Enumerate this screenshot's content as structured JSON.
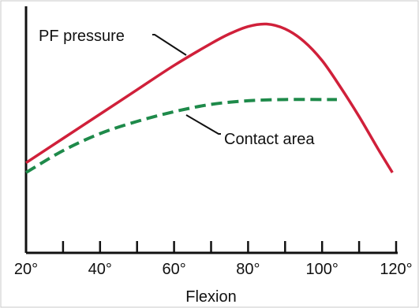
{
  "chart_data": {
    "type": "line",
    "title": "",
    "xlabel": "Flexion",
    "ylabel": "",
    "xlim": [
      20,
      120
    ],
    "x_ticks": [
      20,
      30,
      40,
      50,
      60,
      70,
      80,
      90,
      100,
      110,
      120
    ],
    "x_tick_labels": [
      "20°",
      "",
      "40°",
      "",
      "60°",
      "",
      "80°",
      "",
      "100°",
      "",
      "120°"
    ],
    "y_ticks_shown": false,
    "grid": false,
    "legend": "none (series labeled by annotations)",
    "series": [
      {
        "name": "PF pressure",
        "color": "#d0203a",
        "style": "solid",
        "x": [
          20,
          30,
          40,
          50,
          60,
          70,
          75,
          80,
          85,
          90,
          95,
          100,
          105,
          110,
          115,
          119
        ],
        "y": [
          37,
          47,
          57,
          67,
          77,
          86,
          90,
          93,
          94,
          92,
          87,
          79,
          68,
          56,
          43,
          33
        ]
      },
      {
        "name": "Contact area",
        "color": "#1e8a4a",
        "style": "dashed",
        "x": [
          20,
          30,
          40,
          50,
          60,
          70,
          80,
          90,
          100,
          104
        ],
        "y": [
          33,
          42,
          49,
          54,
          58,
          61,
          62.5,
          63,
          63,
          63
        ]
      }
    ],
    "annotations": [
      {
        "text": "PF pressure",
        "series": "PF pressure"
      },
      {
        "text": "Contact area",
        "series": "Contact area"
      }
    ]
  }
}
